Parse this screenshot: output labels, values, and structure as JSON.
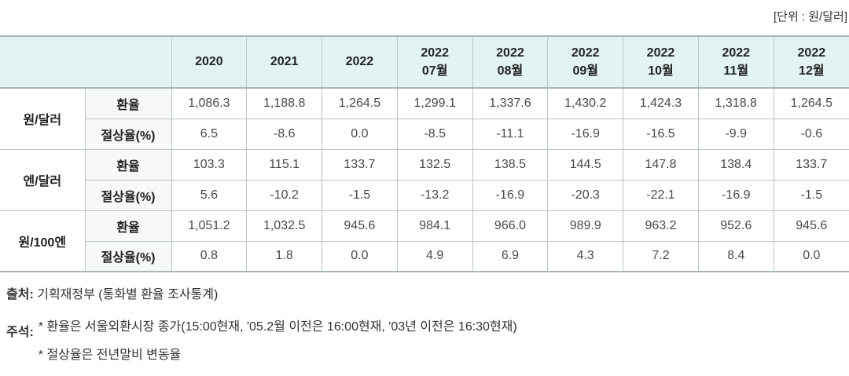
{
  "unit_label": "[단위 : 원/달러]",
  "colors": {
    "header_bg": "#e2f3f2",
    "label_cell_bg": "#f7f8f8",
    "border": "#bcc5c5",
    "outer_border": "#aab6b6",
    "number_text": "#4a4a4a",
    "label_text": "#222222"
  },
  "table": {
    "columns": [
      {
        "line1": "2020",
        "line2": ""
      },
      {
        "line1": "2021",
        "line2": ""
      },
      {
        "line1": "2022",
        "line2": ""
      },
      {
        "line1": "2022",
        "line2": "07월"
      },
      {
        "line1": "2022",
        "line2": "08월"
      },
      {
        "line1": "2022",
        "line2": "09월"
      },
      {
        "line1": "2022",
        "line2": "10월"
      },
      {
        "line1": "2022",
        "line2": "11월"
      },
      {
        "line1": "2022",
        "line2": "12월"
      }
    ],
    "groups": [
      {
        "label": "원/달러",
        "rows": [
          {
            "label": "환율",
            "values": [
              "1,086.3",
              "1,188.8",
              "1,264.5",
              "1,299.1",
              "1,337.6",
              "1,430.2",
              "1,424.3",
              "1,318.8",
              "1,264.5"
            ]
          },
          {
            "label": "절상율(%)",
            "values": [
              "6.5",
              "-8.6",
              "0.0",
              "-8.5",
              "-11.1",
              "-16.9",
              "-16.5",
              "-9.9",
              "-0.6"
            ]
          }
        ]
      },
      {
        "label": "엔/달러",
        "rows": [
          {
            "label": "환율",
            "values": [
              "103.3",
              "115.1",
              "133.7",
              "132.5",
              "138.5",
              "144.5",
              "147.8",
              "138.4",
              "133.7"
            ]
          },
          {
            "label": "절상율(%)",
            "values": [
              "5.6",
              "-10.2",
              "-1.5",
              "-13.2",
              "-16.9",
              "-20.3",
              "-22.1",
              "-16.9",
              "-1.5"
            ]
          }
        ]
      },
      {
        "label": "원/100엔",
        "rows": [
          {
            "label": "환율",
            "values": [
              "1,051.2",
              "1,032.5",
              "945.6",
              "984.1",
              "966.0",
              "989.9",
              "963.2",
              "952.6",
              "945.6"
            ]
          },
          {
            "label": "절상율(%)",
            "values": [
              "0.8",
              "1.8",
              "0.0",
              "4.9",
              "6.9",
              "4.3",
              "7.2",
              "8.4",
              "0.0"
            ]
          }
        ]
      }
    ]
  },
  "footer": {
    "source_label": "출처:",
    "source_text": "기획재정부 (통화별 환율 조사통계)",
    "note_label": "주석:",
    "notes": [
      "* 환율은 서울외환시장 종가(15:00현재, '05.2월 이전은 16:00현재, '03년 이전은 16:30현재)",
      "* 절상율은 전년말비 변동율"
    ]
  }
}
